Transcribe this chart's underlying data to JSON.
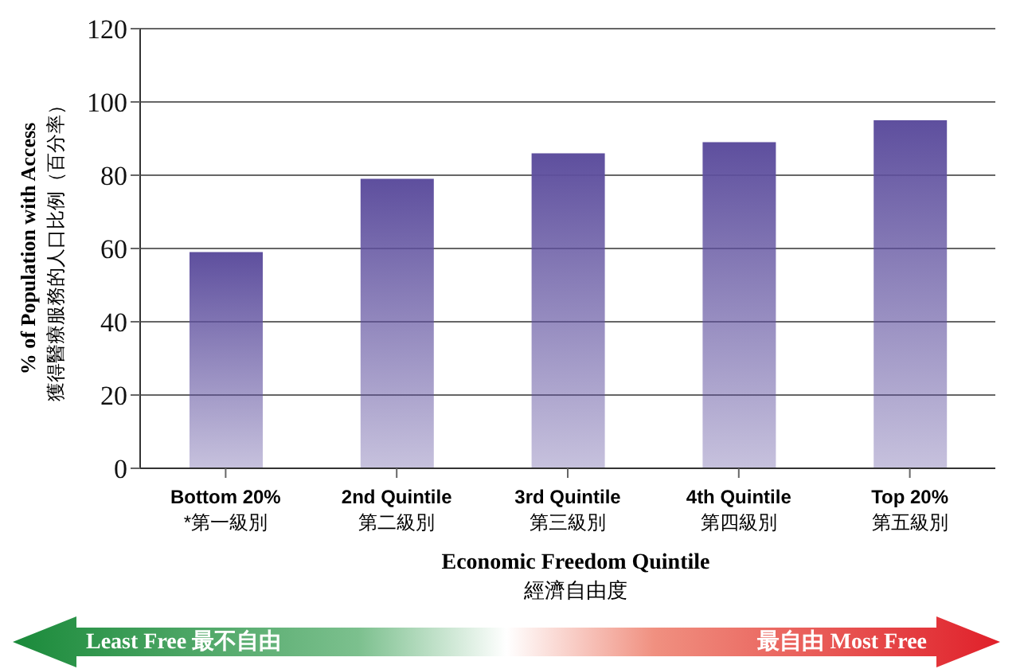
{
  "chart_data": {
    "type": "bar",
    "categories": [
      "Bottom 20%\n*第一級別",
      "2nd Quintile\n第二級別",
      "3rd Quintile\n第三級別",
      "4th Quintile\n第四級別",
      "Top 20%\n第五級別"
    ],
    "values": [
      59,
      79,
      86,
      89,
      95
    ],
    "color": "#5e4f9e",
    "xlabel": "Economic Freedom Quintile\n經濟自由度",
    "ylabel": "% of Population with Access\n獲得醫療服務的人口比例（百分率）",
    "ylim": [
      0,
      120
    ],
    "yticks": [
      0,
      20,
      40,
      60,
      80,
      100,
      120
    ],
    "grid": "y",
    "annotations": [
      "Least Free 最不自由",
      "最自由 Most Free"
    ]
  }
}
